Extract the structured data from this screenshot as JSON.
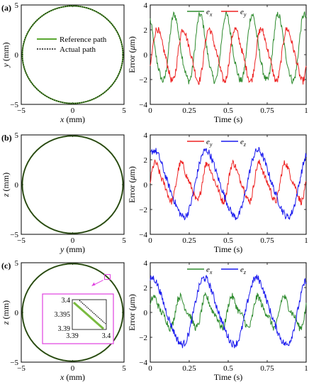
{
  "chart_data": [
    {
      "panel": "(a)",
      "type": "line",
      "subtype": "path",
      "xlabel": "x (mm)",
      "ylabel": "y (mm)",
      "xlim": [
        -5,
        5
      ],
      "ylim": [
        -5,
        5
      ],
      "xticks": [
        "-5",
        "0",
        "5"
      ],
      "yticks": [
        "5",
        "0",
        "-5"
      ],
      "circle": {
        "center": [
          0,
          0
        ],
        "radius": 4.9
      },
      "legend_position": "center",
      "series": [
        {
          "name": "Reference path",
          "color": "#5aa832",
          "style": "solid"
        },
        {
          "name": "Actual path",
          "color": "#111111",
          "style": "dotted"
        }
      ]
    },
    {
      "panel": "(a)",
      "type": "line",
      "xlabel": "Time (s)",
      "ylabel": "Error (μm)",
      "xlim": [
        0,
        1
      ],
      "ylim": [
        -4,
        4
      ],
      "xticks": [
        "0",
        "0.25",
        "0.5",
        "0.75",
        "1"
      ],
      "yticks": [
        "4",
        "2",
        "0",
        "-2",
        "-4"
      ],
      "legend_position": "top",
      "series": [
        {
          "name": "e_x",
          "color": "#2e8b2e",
          "amplitude": 2.6,
          "frequency": 6,
          "phase": 1.9,
          "offset": 0.4,
          "noise": 0.3
        },
        {
          "name": "e_y",
          "color": "#ee2222",
          "amplitude": 2.0,
          "frequency": 6,
          "phase": -0.4,
          "offset": 0.0,
          "noise": 0.3
        }
      ]
    },
    {
      "panel": "(b)",
      "type": "line",
      "subtype": "path",
      "xlabel": "y (mm)",
      "ylabel": "z (mm)",
      "xlim": [
        -5,
        5
      ],
      "ylim": [
        -5,
        5
      ],
      "xticks": [
        "-5",
        "0",
        "5"
      ],
      "yticks": [
        "5",
        "0",
        "-5"
      ],
      "circle": {
        "center": [
          0,
          0
        ],
        "radius": 4.9
      },
      "series": []
    },
    {
      "panel": "(b)",
      "type": "line",
      "xlabel": "Time (s)",
      "ylabel": "Error (μm)",
      "xlim": [
        0,
        1
      ],
      "ylim": [
        -4,
        4
      ],
      "xticks": [
        "0",
        "0.25",
        "0.5",
        "0.75",
        "1"
      ],
      "yticks": [
        "4",
        "2",
        "0",
        "-2",
        "-4"
      ],
      "legend_position": "top",
      "series": [
        {
          "name": "e_y",
          "color": "#ee2222",
          "amplitude": 1.4,
          "frequency": 6,
          "phase": 0.0,
          "offset": 0.2,
          "noise": 0.3
        },
        {
          "name": "e_z",
          "color": "#1a1aee",
          "amplitude": 2.6,
          "frequency": 3,
          "phase": 0.9,
          "offset": 0.0,
          "noise": 0.3
        }
      ]
    },
    {
      "panel": "(c)",
      "type": "line",
      "subtype": "path",
      "xlabel": "x (mm)",
      "ylabel": "z (mm)",
      "xlim": [
        -5,
        5
      ],
      "ylim": [
        -5,
        5
      ],
      "xticks": [
        "-5",
        "0",
        "5"
      ],
      "yticks": [
        "5",
        "0",
        "-5"
      ],
      "circle": {
        "center": [
          0,
          0
        ],
        "radius": 4.9
      },
      "inset": {
        "xlim": [
          3.39,
          3.4
        ],
        "ylim": [
          3.39,
          3.4
        ],
        "xticks": [
          "3.39",
          "3.4"
        ],
        "yticks": [
          "3.4",
          "3.395",
          "3.39"
        ],
        "border_color": "#e040e0"
      },
      "series": []
    },
    {
      "panel": "(c)",
      "type": "line",
      "xlabel": "Time (s)",
      "ylabel": "Error (μm)",
      "xlim": [
        0,
        1
      ],
      "ylim": [
        -4,
        4
      ],
      "xticks": [
        "0",
        "0.25",
        "0.5",
        "0.75",
        "1"
      ],
      "yticks": [
        "4",
        "2",
        "0",
        "-2",
        "-4"
      ],
      "legend_position": "top",
      "series": [
        {
          "name": "e_x",
          "color": "#2e8b2e",
          "amplitude": 1.1,
          "frequency": 6,
          "phase": 0.3,
          "offset": 0.0,
          "noise": 0.3
        },
        {
          "name": "e_z",
          "color": "#1a1aee",
          "amplitude": 2.6,
          "frequency": 3,
          "phase": 1.1,
          "offset": 0.0,
          "noise": 0.3
        }
      ]
    }
  ]
}
